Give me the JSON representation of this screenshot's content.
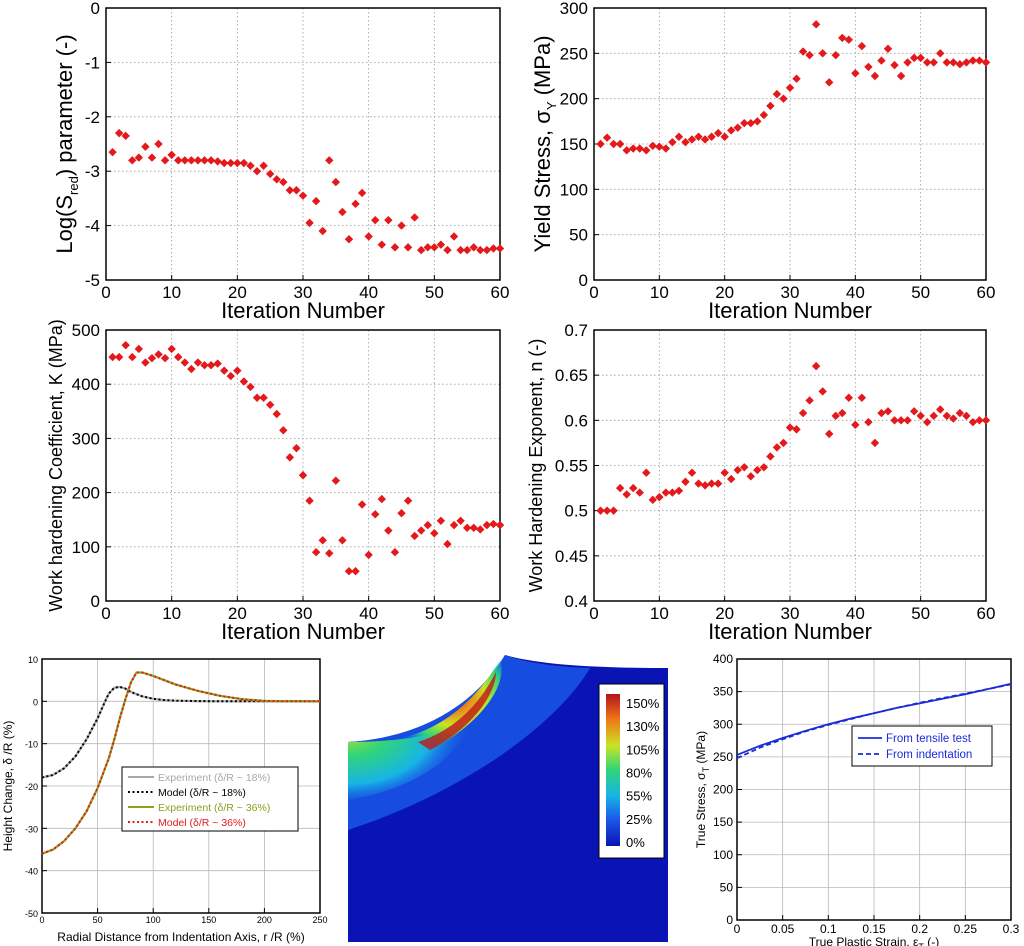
{
  "colors": {
    "marker": "#e3191c",
    "axis": "#000000",
    "exp18": "#a8a8a8",
    "model18": "#000000",
    "exp36": "#8aa21b",
    "model36": "#e3191c",
    "tensile": "#1b2bd8",
    "indentation": "#1b2bd8"
  },
  "chart_data": [
    {
      "id": "sred",
      "type": "scatter",
      "xlabel": "Iteration Number",
      "ylabel_parts": [
        "Log(S",
        "red",
        ") parameter (-)"
      ],
      "xlim": [
        0,
        60
      ],
      "ylim": [
        -5,
        0
      ],
      "xticks": [
        "0",
        "10",
        "20",
        "30",
        "40",
        "50",
        "60"
      ],
      "yticks": [
        "-5",
        "-4",
        "-3",
        "-2",
        "-1",
        "0"
      ],
      "grid": true,
      "x": [
        1,
        2,
        3,
        4,
        5,
        6,
        7,
        8,
        9,
        10,
        11,
        12,
        13,
        14,
        15,
        16,
        17,
        18,
        19,
        20,
        21,
        22,
        23,
        24,
        25,
        26,
        27,
        28,
        29,
        30,
        31,
        32,
        33,
        34,
        35,
        36,
        37,
        38,
        39,
        40,
        41,
        42,
        43,
        44,
        45,
        46,
        47,
        48,
        49,
        50,
        51,
        52,
        53,
        54,
        55,
        56,
        57,
        58,
        59,
        60
      ],
      "y": [
        -2.65,
        -2.3,
        -2.35,
        -2.8,
        -2.75,
        -2.55,
        -2.75,
        -2.5,
        -2.8,
        -2.7,
        -2.8,
        -2.8,
        -2.8,
        -2.8,
        -2.8,
        -2.8,
        -2.82,
        -2.85,
        -2.85,
        -2.85,
        -2.85,
        -2.9,
        -3.0,
        -2.9,
        -3.05,
        -3.15,
        -3.2,
        -3.35,
        -3.35,
        -3.45,
        -3.95,
        -3.55,
        -4.1,
        -2.8,
        -3.2,
        -3.75,
        -4.25,
        -3.6,
        -3.4,
        -4.2,
        -3.9,
        -4.35,
        -3.9,
        -4.4,
        -4.0,
        -4.4,
        -3.85,
        -4.45,
        -4.4,
        -4.4,
        -4.35,
        -4.45,
        -4.2,
        -4.45,
        -4.45,
        -4.4,
        -4.45,
        -4.45,
        -4.42,
        -4.42
      ]
    },
    {
      "id": "yield",
      "type": "scatter",
      "xlabel": "Iteration Number",
      "ylabel": "Yield Stress, σ",
      "ylabel_sub": "Y",
      "ylabel_tail": " (MPa)",
      "xlim": [
        0,
        60
      ],
      "ylim": [
        0,
        300
      ],
      "xticks": [
        "0",
        "10",
        "20",
        "30",
        "40",
        "50",
        "60"
      ],
      "yticks": [
        "0",
        "50",
        "100",
        "150",
        "200",
        "250",
        "300"
      ],
      "grid": true,
      "x": [
        1,
        2,
        3,
        4,
        5,
        6,
        7,
        8,
        9,
        10,
        11,
        12,
        13,
        14,
        15,
        16,
        17,
        18,
        19,
        20,
        21,
        22,
        23,
        24,
        25,
        26,
        27,
        28,
        29,
        30,
        31,
        32,
        33,
        34,
        35,
        36,
        37,
        38,
        39,
        40,
        41,
        42,
        43,
        44,
        45,
        46,
        47,
        48,
        49,
        50,
        51,
        52,
        53,
        54,
        55,
        56,
        57,
        58,
        59,
        60
      ],
      "y": [
        150,
        157,
        150,
        150,
        143,
        145,
        145,
        143,
        148,
        147,
        145,
        152,
        158,
        152,
        155,
        158,
        155,
        158,
        162,
        158,
        165,
        168,
        173,
        173,
        175,
        182,
        192,
        205,
        200,
        212,
        222,
        252,
        248,
        282,
        250,
        218,
        248,
        267,
        265,
        228,
        258,
        235,
        225,
        242,
        255,
        237,
        225,
        240,
        245,
        245,
        240,
        240,
        250,
        240,
        240,
        238,
        240,
        242,
        242,
        240
      ]
    },
    {
      "id": "K",
      "type": "scatter",
      "xlabel": "Iteration Number",
      "ylabel": "Work hardening Coefficient, K (MPa)",
      "xlim": [
        0,
        60
      ],
      "ylim": [
        0,
        500
      ],
      "xticks": [
        "0",
        "10",
        "20",
        "30",
        "40",
        "50",
        "60"
      ],
      "yticks": [
        "0",
        "100",
        "200",
        "300",
        "400",
        "500"
      ],
      "grid": true,
      "x": [
        1,
        2,
        3,
        4,
        5,
        6,
        7,
        8,
        9,
        10,
        11,
        12,
        13,
        14,
        15,
        16,
        17,
        18,
        19,
        20,
        21,
        22,
        23,
        24,
        25,
        26,
        27,
        28,
        29,
        30,
        31,
        32,
        33,
        34,
        35,
        36,
        37,
        38,
        39,
        40,
        41,
        42,
        43,
        44,
        45,
        46,
        47,
        48,
        49,
        50,
        51,
        52,
        53,
        54,
        55,
        56,
        57,
        58,
        59,
        60
      ],
      "y": [
        450,
        450,
        472,
        450,
        465,
        440,
        448,
        455,
        448,
        465,
        450,
        440,
        428,
        440,
        435,
        435,
        438,
        425,
        415,
        425,
        405,
        395,
        375,
        375,
        362,
        345,
        315,
        265,
        282,
        232,
        185,
        90,
        112,
        88,
        222,
        112,
        55,
        55,
        178,
        85,
        160,
        188,
        130,
        90,
        162,
        185,
        120,
        130,
        140,
        125,
        148,
        105,
        140,
        148,
        135,
        135,
        132,
        140,
        142,
        140
      ]
    },
    {
      "id": "n",
      "type": "scatter",
      "xlabel": "Iteration Number",
      "ylabel": "Work Hardening Exponent, n (-)",
      "xlim": [
        0,
        60
      ],
      "ylim": [
        0.4,
        0.7
      ],
      "xticks": [
        "0",
        "10",
        "20",
        "30",
        "40",
        "50",
        "60"
      ],
      "yticks": [
        "0.4",
        "0.45",
        "0.5",
        "0.55",
        "0.6",
        "0.65",
        "0.7"
      ],
      "grid": true,
      "x": [
        1,
        2,
        3,
        4,
        5,
        6,
        7,
        8,
        9,
        10,
        11,
        12,
        13,
        14,
        15,
        16,
        17,
        18,
        19,
        20,
        21,
        22,
        23,
        24,
        25,
        26,
        27,
        28,
        29,
        30,
        31,
        32,
        33,
        34,
        35,
        36,
        37,
        38,
        39,
        40,
        41,
        42,
        43,
        44,
        45,
        46,
        47,
        48,
        49,
        50,
        51,
        52,
        53,
        54,
        55,
        56,
        57,
        58,
        59,
        60
      ],
      "y": [
        0.5,
        0.5,
        0.5,
        0.525,
        0.518,
        0.525,
        0.52,
        0.542,
        0.512,
        0.515,
        0.52,
        0.52,
        0.522,
        0.532,
        0.542,
        0.53,
        0.528,
        0.53,
        0.53,
        0.542,
        0.535,
        0.545,
        0.548,
        0.538,
        0.545,
        0.548,
        0.56,
        0.57,
        0.575,
        0.592,
        0.59,
        0.608,
        0.622,
        0.66,
        0.632,
        0.585,
        0.605,
        0.608,
        0.625,
        0.595,
        0.625,
        0.598,
        0.575,
        0.608,
        0.61,
        0.6,
        0.6,
        0.6,
        0.61,
        0.605,
        0.598,
        0.605,
        0.612,
        0.605,
        0.602,
        0.608,
        0.605,
        0.598,
        0.6,
        0.6
      ]
    },
    {
      "id": "height",
      "type": "line",
      "xlabel": "Radial Distance from Indentation Axis, r /R (%)",
      "ylabel": "Height Change, δ /R (%)",
      "xlim": [
        0,
        250
      ],
      "ylim": [
        -50,
        10
      ],
      "xticks": [
        "0",
        "50",
        "100",
        "150",
        "200",
        "250"
      ],
      "yticks": [
        "-50",
        "-40",
        "-30",
        "-20",
        "-10",
        "0",
        "10"
      ],
      "grid": true,
      "legend_position": "right",
      "series": [
        {
          "name": "Experiment (δ/R ~ 18%)",
          "style": "solid",
          "color_key": "exp18",
          "x": [
            0,
            10,
            20,
            30,
            40,
            50,
            55,
            60,
            65,
            70,
            75,
            80,
            90,
            100,
            110,
            120,
            140,
            160,
            200,
            250
          ],
          "y": [
            -18,
            -17.4,
            -15.8,
            -13,
            -9,
            -4,
            -1,
            1.8,
            3.2,
            3.4,
            3,
            2.2,
            1.2,
            0.6,
            0.3,
            0.15,
            0.05,
            0,
            0,
            0
          ]
        },
        {
          "name": "Model (δ/R ~ 18%)",
          "style": "dotted",
          "color_key": "model18",
          "x": [
            0,
            10,
            20,
            30,
            40,
            50,
            55,
            60,
            65,
            70,
            75,
            80,
            90,
            100,
            110,
            120,
            140,
            160,
            200,
            250
          ],
          "y": [
            -18,
            -17.4,
            -15.8,
            -13,
            -9,
            -4,
            -1,
            1.8,
            3.2,
            3.4,
            3,
            2.2,
            1.2,
            0.6,
            0.3,
            0.15,
            0.05,
            0,
            0,
            0
          ]
        },
        {
          "name": "Experiment (δ/R ~ 36%)",
          "style": "solid",
          "color_key": "exp36",
          "x": [
            0,
            10,
            20,
            30,
            40,
            50,
            60,
            65,
            70,
            75,
            80,
            85,
            90,
            100,
            110,
            120,
            140,
            160,
            180,
            200,
            220,
            250
          ],
          "y": [
            -36,
            -35,
            -33,
            -30,
            -26,
            -20.5,
            -13.5,
            -9,
            -4,
            0.5,
            4.5,
            6.8,
            6.8,
            6,
            5,
            4,
            2.5,
            1.3,
            0.5,
            0.1,
            0,
            0
          ]
        },
        {
          "name": "Model (δ/R ~ 36%)",
          "style": "dotted",
          "color_key": "model36",
          "x": [
            0,
            10,
            20,
            30,
            40,
            50,
            60,
            65,
            70,
            75,
            80,
            85,
            90,
            100,
            110,
            120,
            140,
            160,
            180,
            200,
            220,
            250
          ],
          "y": [
            -36,
            -35,
            -33,
            -30,
            -26,
            -20.5,
            -13.5,
            -9,
            -4,
            0.5,
            4.5,
            6.8,
            6.8,
            6,
            5,
            4,
            2.5,
            1.3,
            0.5,
            0.1,
            0,
            0
          ]
        }
      ]
    },
    {
      "id": "contour",
      "type": "heatmap",
      "colorbar_ticks": [
        "150%",
        "130%",
        "105%",
        "80%",
        "55%",
        "25%",
        "0%"
      ]
    },
    {
      "id": "flow",
      "type": "line",
      "xlabel_parts": [
        "True Plastic Strain, ε",
        "T",
        " (-)"
      ],
      "ylabel_parts": [
        "True Stress, σ",
        "T",
        " (MPa)"
      ],
      "xlim": [
        0,
        0.3
      ],
      "ylim": [
        0,
        400
      ],
      "xticks": [
        "0",
        "0.05",
        "0.1",
        "0.15",
        "0.2",
        "0.25",
        "0.3"
      ],
      "yticks": [
        "0",
        "50",
        "100",
        "150",
        "200",
        "250",
        "300",
        "350",
        "400"
      ],
      "grid": true,
      "legend_position": "right",
      "series": [
        {
          "name": "From tensile test",
          "style": "solid",
          "color_key": "tensile",
          "x": [
            0,
            0.025,
            0.05,
            0.075,
            0.1,
            0.125,
            0.15,
            0.175,
            0.2,
            0.225,
            0.25,
            0.275,
            0.3
          ],
          "y": [
            253,
            267,
            279,
            290,
            300,
            309,
            317,
            325,
            332,
            339,
            346,
            354,
            362
          ]
        },
        {
          "name": "From indentation",
          "style": "dashed",
          "color_key": "indentation",
          "x": [
            0,
            0.025,
            0.05,
            0.075,
            0.1,
            0.125,
            0.15,
            0.175,
            0.2,
            0.225,
            0.25,
            0.275,
            0.3
          ],
          "y": [
            248,
            264,
            277,
            289,
            299,
            308,
            317,
            325,
            333,
            340,
            347,
            354,
            361
          ]
        }
      ]
    }
  ]
}
